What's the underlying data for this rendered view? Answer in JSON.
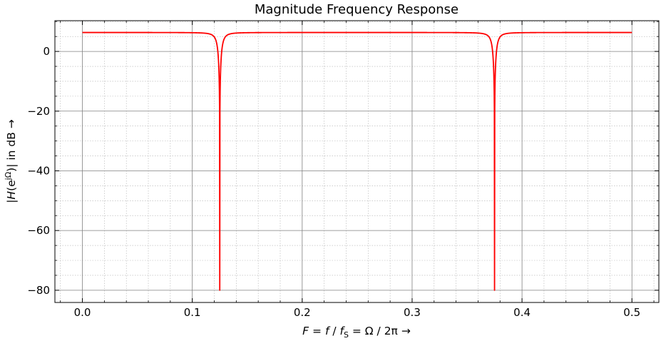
{
  "chart_data": {
    "type": "line",
    "title": "Magnitude Frequency Response",
    "xlabel": {
      "F": "F",
      "eq1": " = ",
      "f": "f",
      "slash1": " / ",
      "fs_base": "f",
      "fs_sub": "S",
      "eq2": " = Ω / 2π  →"
    },
    "ylabel": {
      "prefix": "|",
      "H": "H",
      "open": "(e",
      "sup": "jΩ",
      "suffix": ")| in dB  →"
    },
    "xlim": [
      -0.025,
      0.5245
    ],
    "ylim": [
      -84.1,
      10.3
    ],
    "x_ticks": [
      0.0,
      0.1,
      0.2,
      0.3,
      0.4,
      0.5
    ],
    "x_tick_labels": [
      "0.0",
      "0.1",
      "0.2",
      "0.3",
      "0.4",
      "0.5"
    ],
    "y_ticks": [
      0,
      -20,
      -40,
      -60,
      -80
    ],
    "y_tick_labels": [
      "0",
      "−20",
      "−40",
      "−60",
      "−80"
    ],
    "grid": "major and minor",
    "legend": "none",
    "series": [
      {
        "color": "#ff0000",
        "x_range": [
          0.0,
          0.5
        ],
        "passband_db": 6,
        "notch_frequencies": [
          0.125,
          0.375
        ],
        "notch_floor_db": -80
      }
    ]
  }
}
